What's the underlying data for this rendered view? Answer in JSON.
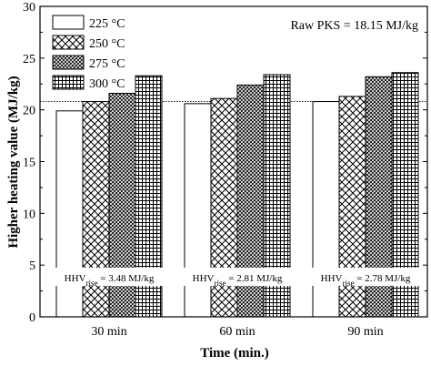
{
  "chart_data": {
    "type": "bar",
    "xlabel": "Time (min.)",
    "ylabel": "Higher heating value (MJ/kg)",
    "ylim": [
      0,
      30
    ],
    "yticks": [
      0,
      5,
      10,
      15,
      20,
      25,
      30
    ],
    "categories": [
      "30 min",
      "60 min",
      "90 min"
    ],
    "series": [
      {
        "name": "225 °C",
        "pattern": "plain",
        "values": [
          19.9,
          20.6,
          20.8
        ]
      },
      {
        "name": "250 °C",
        "pattern": "diagonal-crosshatch",
        "values": [
          20.8,
          21.1,
          21.3
        ]
      },
      {
        "name": "275 °C",
        "pattern": "fine-crosshatch",
        "values": [
          21.6,
          22.4,
          23.2
        ]
      },
      {
        "name": "300 °C",
        "pattern": "grid",
        "values": [
          23.3,
          23.4,
          23.6
        ]
      }
    ],
    "reference_line": {
      "value": 20.8,
      "style": "dotted"
    },
    "annotation": "Raw PKS = 18.15 MJ/kg",
    "rise_labels": [
      {
        "prefix": "HHV",
        "sub": "rise",
        "text": " = 3.48 MJ/kg"
      },
      {
        "prefix": "HHV",
        "sub": "rise",
        "text": " = 2.81 MJ/kg"
      },
      {
        "prefix": "HHV",
        "sub": "rise",
        "text": " = 2.78 MJ/kg"
      }
    ],
    "legend_position": "top-left",
    "grid": false
  }
}
